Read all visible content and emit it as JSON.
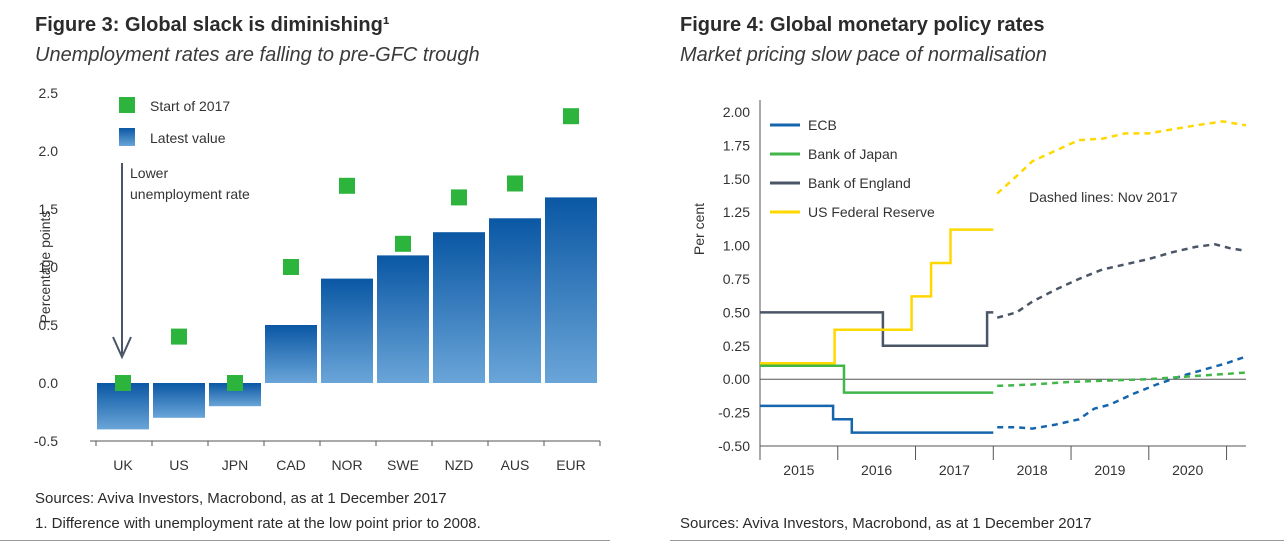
{
  "colors": {
    "bar_top": "#0a57a4",
    "bar_bottom": "#6aa5d8",
    "marker_green": "#2db43c",
    "ecb": "#1565ad",
    "boj": "#41b649",
    "boe": "#4a5566",
    "fed": "#ffd800",
    "axis": "#555555",
    "arrow": "#4a5566"
  },
  "figure3": {
    "title": "Figure 3: Global slack is diminishing¹",
    "subtitle": "Unemployment rates are falling to pre-GFC trough",
    "annotation_line1": "Lower",
    "annotation_line2": "unemployment rate",
    "source": "Sources: Aviva Investors, Macrobond, as at 1 December 2017",
    "footnote": "1. Difference with unemployment rate at the low point prior to 2008.",
    "chart_data": {
      "type": "bar",
      "categories": [
        "UK",
        "US",
        "JPN",
        "CAD",
        "NOR",
        "SWE",
        "NZD",
        "AUS",
        "EUR"
      ],
      "series": [
        {
          "name": "Latest value",
          "values": [
            -0.4,
            -0.3,
            -0.2,
            0.5,
            0.9,
            1.1,
            1.3,
            1.42,
            1.6
          ]
        },
        {
          "name": "Start of 2017",
          "values": [
            0.0,
            0.4,
            0.0,
            1.0,
            1.7,
            1.2,
            1.6,
            1.72,
            2.3
          ]
        }
      ],
      "ylabel": "Percentage points",
      "ylim": [
        -0.5,
        2.5
      ],
      "yticks": [
        "2.5",
        "2.0",
        "1.5",
        "1.0",
        "0.5",
        "0.0",
        "-0.5"
      ],
      "ytick_values": [
        2.5,
        2.0,
        1.5,
        1.0,
        0.5,
        0.0,
        -0.5
      ],
      "legend": [
        "Start of 2017",
        "Latest value"
      ],
      "legend_position": "top-left"
    }
  },
  "figure4": {
    "title": "Figure 4: Global monetary policy rates",
    "subtitle": "Market pricing slow pace of normalisation",
    "annotation": "Dashed lines: Nov 2017",
    "source": "Sources: Aviva Investors, Macrobond, as at 1 December 2017",
    "chart_data": {
      "type": "line",
      "ylabel": "Per cent",
      "xlim": [
        2014.5,
        2020.75
      ],
      "ylim": [
        -0.5,
        2.0
      ],
      "yticks": [
        "2.00",
        "1.75",
        "1.50",
        "1.25",
        "1.00",
        "0.75",
        "0.50",
        "0.25",
        "0.00",
        "-0.25",
        "-0.50"
      ],
      "ytick_values": [
        2.0,
        1.75,
        1.5,
        1.25,
        1.0,
        0.75,
        0.5,
        0.25,
        0.0,
        -0.25,
        -0.5
      ],
      "xticks": [
        "2015",
        "2016",
        "2017",
        "2018",
        "2019",
        "2020"
      ],
      "xtick_values": [
        2015,
        2016,
        2017,
        2018,
        2019,
        2020
      ],
      "legend_position": "top-left",
      "series": [
        {
          "name": "ECB",
          "color_key": "ecb",
          "actual": [
            [
              2014.5,
              -0.2
            ],
            [
              2015.44,
              -0.2
            ],
            [
              2015.44,
              -0.3
            ],
            [
              2015.68,
              -0.3
            ],
            [
              2015.68,
              -0.4
            ],
            [
              2017.5,
              -0.4
            ]
          ],
          "forecast": [
            [
              2017.55,
              -0.36
            ],
            [
              2017.8,
              -0.36
            ],
            [
              2018.0,
              -0.37
            ],
            [
              2018.3,
              -0.34
            ],
            [
              2018.6,
              -0.3
            ],
            [
              2018.8,
              -0.22
            ],
            [
              2019.0,
              -0.19
            ],
            [
              2019.3,
              -0.11
            ],
            [
              2019.6,
              -0.04
            ],
            [
              2019.9,
              0.02
            ],
            [
              2020.2,
              0.07
            ],
            [
              2020.5,
              0.12
            ],
            [
              2020.75,
              0.17
            ]
          ]
        },
        {
          "name": "Bank of Japan",
          "color_key": "boj",
          "actual": [
            [
              2014.5,
              0.1
            ],
            [
              2015.58,
              0.1
            ],
            [
              2015.58,
              -0.1
            ],
            [
              2017.5,
              -0.1
            ]
          ],
          "forecast": [
            [
              2017.55,
              -0.05
            ],
            [
              2018.0,
              -0.04
            ],
            [
              2018.5,
              -0.02
            ],
            [
              2019.0,
              -0.01
            ],
            [
              2019.5,
              0.0
            ],
            [
              2020.0,
              0.02
            ],
            [
              2020.5,
              0.04
            ],
            [
              2020.75,
              0.05
            ]
          ]
        },
        {
          "name": "Bank of England",
          "color_key": "boe",
          "actual": [
            [
              2014.5,
              0.5
            ],
            [
              2016.08,
              0.5
            ],
            [
              2016.08,
              0.25
            ],
            [
              2017.42,
              0.25
            ],
            [
              2017.42,
              0.5
            ],
            [
              2017.5,
              0.5
            ]
          ],
          "forecast": [
            [
              2017.55,
              0.46
            ],
            [
              2017.8,
              0.5
            ],
            [
              2018.0,
              0.58
            ],
            [
              2018.3,
              0.67
            ],
            [
              2018.6,
              0.75
            ],
            [
              2018.9,
              0.82
            ],
            [
              2019.2,
              0.86
            ],
            [
              2019.5,
              0.9
            ],
            [
              2019.8,
              0.95
            ],
            [
              2020.1,
              0.99
            ],
            [
              2020.35,
              1.01
            ],
            [
              2020.55,
              0.98
            ],
            [
              2020.75,
              0.96
            ]
          ]
        },
        {
          "name": "US Federal Reserve",
          "color_key": "fed",
          "actual": [
            [
              2014.5,
              0.12
            ],
            [
              2015.46,
              0.12
            ],
            [
              2015.46,
              0.37
            ],
            [
              2016.45,
              0.37
            ],
            [
              2016.45,
              0.62
            ],
            [
              2016.7,
              0.62
            ],
            [
              2016.7,
              0.87
            ],
            [
              2016.95,
              0.87
            ],
            [
              2016.95,
              1.12
            ],
            [
              2017.5,
              1.12
            ]
          ],
          "forecast": [
            [
              2017.55,
              1.39
            ],
            [
              2017.8,
              1.52
            ],
            [
              2018.0,
              1.63
            ],
            [
              2018.3,
              1.71
            ],
            [
              2018.6,
              1.79
            ],
            [
              2018.9,
              1.8
            ],
            [
              2019.2,
              1.84
            ],
            [
              2019.5,
              1.84
            ],
            [
              2019.8,
              1.87
            ],
            [
              2020.1,
              1.9
            ],
            [
              2020.45,
              1.93
            ],
            [
              2020.75,
              1.9
            ]
          ]
        }
      ]
    }
  }
}
